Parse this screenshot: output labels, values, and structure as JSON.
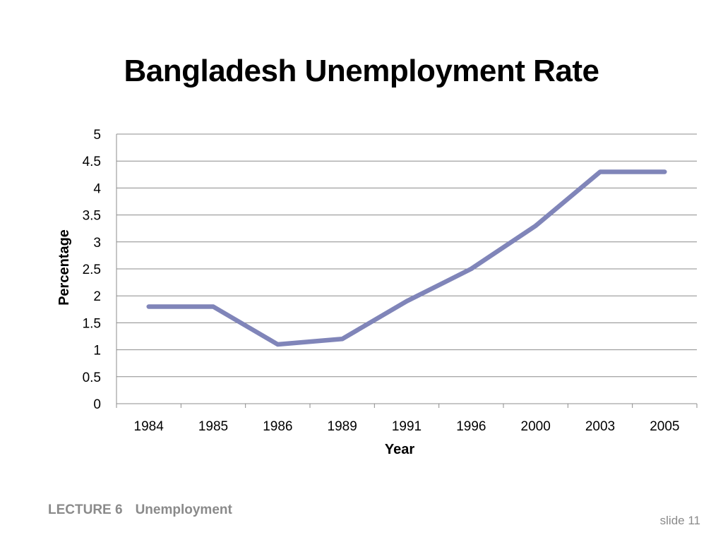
{
  "slide": {
    "title": "Bangladesh Unemployment Rate",
    "footer_lecture": "LECTURE 6",
    "footer_topic": "Unemployment",
    "slide_number": "slide 11"
  },
  "colors": {
    "line": "#8085b9",
    "grid": "#8c8c8c",
    "axis": "#8c8c8c"
  },
  "chart_data": {
    "type": "line",
    "title": "Bangladesh Unemployment Rate",
    "xlabel": "Year",
    "ylabel": "Percentage",
    "categories": [
      "1984",
      "1985",
      "1986",
      "1989",
      "1991",
      "1996",
      "2000",
      "2003",
      "2005"
    ],
    "series": [
      {
        "values": [
          1.8,
          1.8,
          1.1,
          1.2,
          1.9,
          2.5,
          3.3,
          4.3,
          4.3
        ]
      }
    ],
    "ylim": [
      0,
      5
    ],
    "yticks": [
      "0",
      "0.5",
      "1",
      "1.5",
      "2",
      "2.5",
      "3",
      "3.5",
      "4",
      "4.5",
      "5"
    ],
    "grid": true,
    "legend": "none"
  }
}
